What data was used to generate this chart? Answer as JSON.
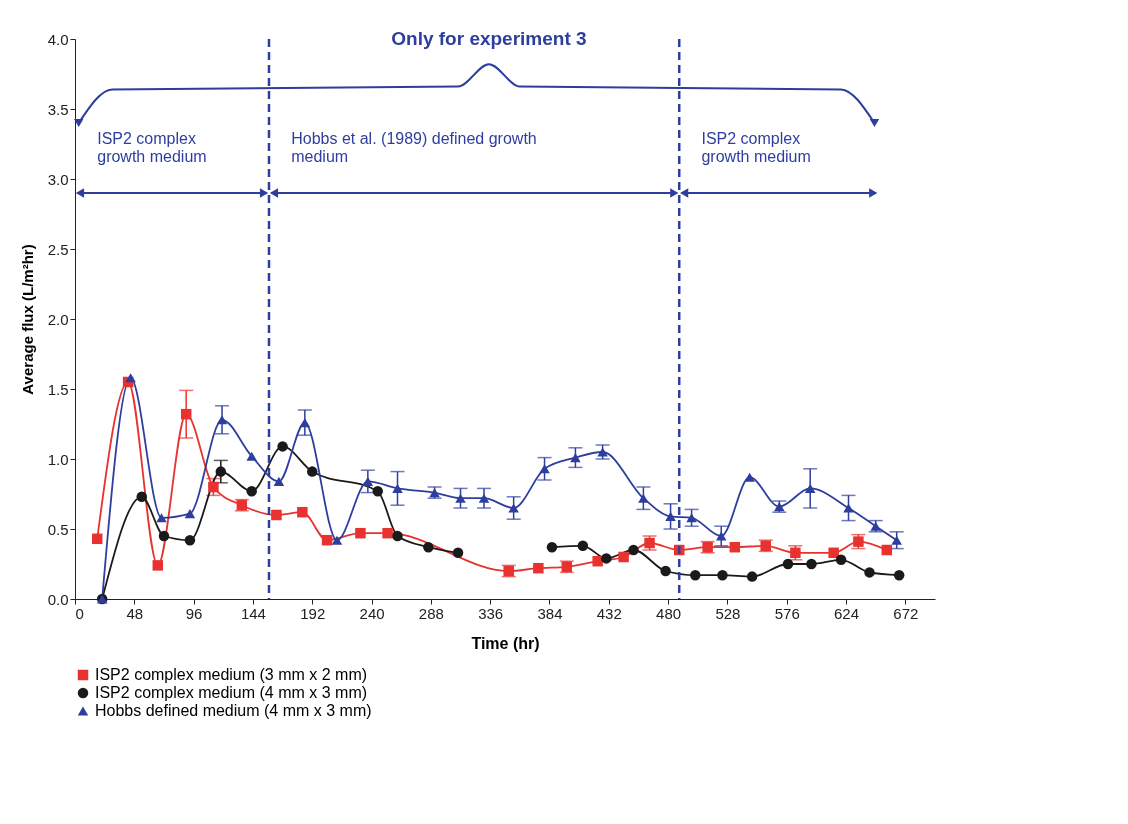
{
  "chart_data": {
    "type": "line",
    "xlabel": "Time (hr)",
    "ylabel": "Average flux (L/m²hr)",
    "xlim": [
      0,
      696
    ],
    "xticks": [
      0,
      48,
      96,
      144,
      192,
      240,
      288,
      336,
      384,
      432,
      480,
      528,
      576,
      624,
      672
    ],
    "ylim": [
      0,
      4.0
    ],
    "yticks": [
      {
        "value": 0,
        "label": "0.0"
      },
      {
        "value": 0.5,
        "label": "0.5"
      },
      {
        "value": 1,
        "label": "1.0"
      },
      {
        "value": 1.5,
        "label": "1.5"
      },
      {
        "value": 2,
        "label": "2.0"
      },
      {
        "value": 2.5,
        "label": "2.5"
      },
      {
        "value": 3,
        "label": "3.0"
      },
      {
        "value": 3.5,
        "label": "3.5"
      },
      {
        "value": 4,
        "label": "4.0"
      }
    ],
    "grid": false,
    "legend": "bottom",
    "line_style": "solid",
    "series": [
      {
        "name": "ISP2 complex medium (3 mm x 2 mm)",
        "color": "#e8322f",
        "marker": "square",
        "x": [
          18,
          43,
          67,
          90,
          112,
          135,
          163,
          184,
          204,
          231,
          253,
          351,
          375,
          398,
          423,
          444,
          465,
          489,
          512,
          534,
          559,
          583,
          614,
          634,
          657
        ],
        "values": [
          0.43,
          1.55,
          0.24,
          1.32,
          0.8,
          0.67,
          0.6,
          0.62,
          0.42,
          0.47,
          0.47,
          0.2,
          0.22,
          0.23,
          0.27,
          0.3,
          0.4,
          0.35,
          0.37,
          0.37,
          0.38,
          0.33,
          0.33,
          0.41,
          0.35
        ],
        "errors": [
          null,
          null,
          null,
          0.17,
          0.06,
          0.04,
          null,
          null,
          null,
          null,
          null,
          0.04,
          null,
          0.04,
          null,
          null,
          0.05,
          null,
          0.04,
          null,
          0.04,
          0.05,
          null,
          0.05,
          null
        ]
      },
      {
        "name": "ISP2 complex medium (4 mm x 3 mm)",
        "color": "#1a1a1a",
        "marker": "circle",
        "x": [
          22,
          54,
          72,
          93,
          118,
          143,
          168,
          192,
          245,
          261,
          286,
          310,
          357,
          386,
          411,
          430,
          452,
          478,
          502,
          524,
          548,
          577,
          596,
          620,
          643,
          667
        ],
        "values": [
          0.0,
          0.73,
          0.45,
          0.42,
          0.91,
          0.77,
          1.09,
          0.91,
          0.77,
          0.45,
          0.37,
          0.33,
          null,
          0.37,
          0.38,
          0.29,
          0.35,
          0.2,
          0.17,
          0.17,
          0.16,
          0.25,
          0.25,
          0.28,
          0.19,
          0.17
        ],
        "errors": [
          null,
          null,
          null,
          null,
          0.08,
          null,
          null,
          null,
          null,
          null,
          null,
          null,
          null,
          null,
          null,
          null,
          null,
          null,
          null,
          null,
          null,
          null,
          null,
          null,
          null,
          null
        ]
      },
      {
        "name": "Hobbs defined medium (4 mm x 3 mm)",
        "color": "#2e3e9e",
        "marker": "triangle",
        "x": [
          22,
          45,
          70,
          93,
          119,
          143,
          165,
          186,
          212,
          237,
          261,
          291,
          312,
          331,
          355,
          380,
          405,
          427,
          460,
          482,
          499,
          523,
          546,
          570,
          595,
          626,
          648,
          665
        ],
        "values": [
          0.0,
          1.58,
          0.58,
          0.61,
          1.28,
          1.02,
          0.84,
          1.26,
          0.42,
          0.84,
          0.79,
          0.76,
          0.72,
          0.72,
          0.65,
          0.93,
          1.01,
          1.05,
          0.72,
          0.59,
          0.58,
          0.45,
          0.87,
          0.66,
          0.79,
          0.65,
          0.52,
          0.42
        ],
        "errors": [
          null,
          null,
          null,
          null,
          0.1,
          null,
          null,
          0.09,
          null,
          0.08,
          0.12,
          0.04,
          0.07,
          0.07,
          0.08,
          0.08,
          0.07,
          0.05,
          0.08,
          0.09,
          0.06,
          0.07,
          null,
          0.04,
          0.14,
          0.09,
          0.04,
          0.06
        ]
      }
    ],
    "ref_lines": [
      {
        "axis": "x",
        "value": 157,
        "color": "#2e3e9e",
        "line_style": "dashed"
      },
      {
        "axis": "x",
        "value": 489,
        "color": "#2e3e9e",
        "line_style": "dashed"
      }
    ],
    "annotations": [
      "Only for experiment 3",
      "ISP2 complex\ngrowth medium",
      "Hobbs et al. (1989) defined growth\nmedium",
      "ISP2 complex\ngrowth medium"
    ]
  }
}
